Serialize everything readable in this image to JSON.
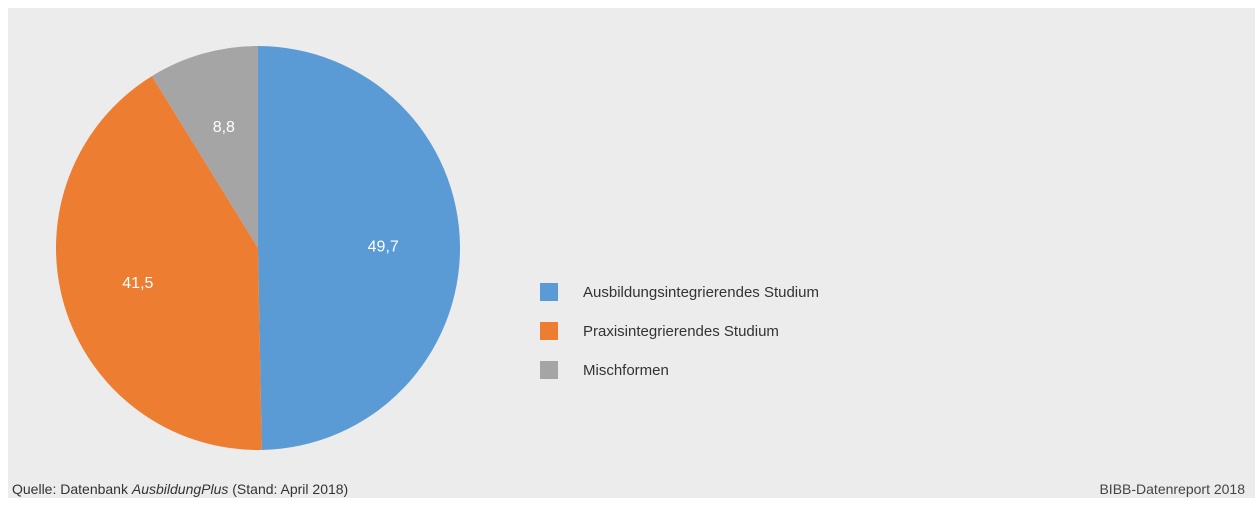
{
  "chart_data": {
    "type": "pie",
    "slices": [
      {
        "label": "Ausbildungsintegrierendes Studium",
        "value": 49.7,
        "value_label": "49,7",
        "color": "#5b9bd5"
      },
      {
        "label": "Praxisintegrierendes Studium",
        "value": 41.5,
        "value_label": "41,5",
        "color": "#ed7d31"
      },
      {
        "label": "Mischformen",
        "value": 8.8,
        "value_label": "8,8",
        "color": "#a5a5a5"
      }
    ],
    "start": "12 o'clock",
    "direction": "clockwise",
    "legend_position": "right"
  },
  "footer": {
    "source_prefix": "Quelle: Datenbank ",
    "source_emphasis": "AusbildungPlus",
    "source_suffix": " (Stand: April 2018)",
    "report": "BIBB-Datenreport 2018"
  },
  "colors": {
    "background": "#ececec",
    "text": "#333333"
  }
}
